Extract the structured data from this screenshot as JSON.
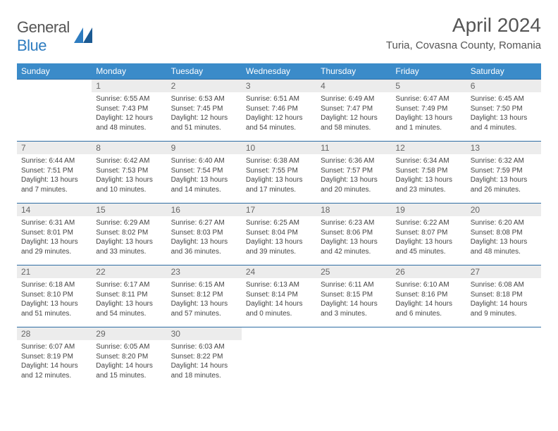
{
  "brand": {
    "name_a": "General",
    "name_b": "Blue"
  },
  "title": "April 2024",
  "location": "Turia, Covasna County, Romania",
  "colors": {
    "header_bg": "#3b8bc9",
    "header_text": "#ffffff",
    "row_border": "#2e6da4",
    "daynum_bg": "#ececec",
    "logo_blue": "#2e7cc0"
  },
  "day_headers": [
    "Sunday",
    "Monday",
    "Tuesday",
    "Wednesday",
    "Thursday",
    "Friday",
    "Saturday"
  ],
  "weeks": [
    [
      null,
      {
        "n": "1",
        "sunrise": "6:55 AM",
        "sunset": "7:43 PM",
        "day_h": "12",
        "day_m": "48"
      },
      {
        "n": "2",
        "sunrise": "6:53 AM",
        "sunset": "7:45 PM",
        "day_h": "12",
        "day_m": "51"
      },
      {
        "n": "3",
        "sunrise": "6:51 AM",
        "sunset": "7:46 PM",
        "day_h": "12",
        "day_m": "54"
      },
      {
        "n": "4",
        "sunrise": "6:49 AM",
        "sunset": "7:47 PM",
        "day_h": "12",
        "day_m": "58"
      },
      {
        "n": "5",
        "sunrise": "6:47 AM",
        "sunset": "7:49 PM",
        "day_h": "13",
        "day_m": "1"
      },
      {
        "n": "6",
        "sunrise": "6:45 AM",
        "sunset": "7:50 PM",
        "day_h": "13",
        "day_m": "4"
      }
    ],
    [
      {
        "n": "7",
        "sunrise": "6:44 AM",
        "sunset": "7:51 PM",
        "day_h": "13",
        "day_m": "7"
      },
      {
        "n": "8",
        "sunrise": "6:42 AM",
        "sunset": "7:53 PM",
        "day_h": "13",
        "day_m": "10"
      },
      {
        "n": "9",
        "sunrise": "6:40 AM",
        "sunset": "7:54 PM",
        "day_h": "13",
        "day_m": "14"
      },
      {
        "n": "10",
        "sunrise": "6:38 AM",
        "sunset": "7:55 PM",
        "day_h": "13",
        "day_m": "17"
      },
      {
        "n": "11",
        "sunrise": "6:36 AM",
        "sunset": "7:57 PM",
        "day_h": "13",
        "day_m": "20"
      },
      {
        "n": "12",
        "sunrise": "6:34 AM",
        "sunset": "7:58 PM",
        "day_h": "13",
        "day_m": "23"
      },
      {
        "n": "13",
        "sunrise": "6:32 AM",
        "sunset": "7:59 PM",
        "day_h": "13",
        "day_m": "26"
      }
    ],
    [
      {
        "n": "14",
        "sunrise": "6:31 AM",
        "sunset": "8:01 PM",
        "day_h": "13",
        "day_m": "29"
      },
      {
        "n": "15",
        "sunrise": "6:29 AM",
        "sunset": "8:02 PM",
        "day_h": "13",
        "day_m": "33"
      },
      {
        "n": "16",
        "sunrise": "6:27 AM",
        "sunset": "8:03 PM",
        "day_h": "13",
        "day_m": "36"
      },
      {
        "n": "17",
        "sunrise": "6:25 AM",
        "sunset": "8:04 PM",
        "day_h": "13",
        "day_m": "39"
      },
      {
        "n": "18",
        "sunrise": "6:23 AM",
        "sunset": "8:06 PM",
        "day_h": "13",
        "day_m": "42"
      },
      {
        "n": "19",
        "sunrise": "6:22 AM",
        "sunset": "8:07 PM",
        "day_h": "13",
        "day_m": "45"
      },
      {
        "n": "20",
        "sunrise": "6:20 AM",
        "sunset": "8:08 PM",
        "day_h": "13",
        "day_m": "48"
      }
    ],
    [
      {
        "n": "21",
        "sunrise": "6:18 AM",
        "sunset": "8:10 PM",
        "day_h": "13",
        "day_m": "51"
      },
      {
        "n": "22",
        "sunrise": "6:17 AM",
        "sunset": "8:11 PM",
        "day_h": "13",
        "day_m": "54"
      },
      {
        "n": "23",
        "sunrise": "6:15 AM",
        "sunset": "8:12 PM",
        "day_h": "13",
        "day_m": "57"
      },
      {
        "n": "24",
        "sunrise": "6:13 AM",
        "sunset": "8:14 PM",
        "day_h": "14",
        "day_m": "0"
      },
      {
        "n": "25",
        "sunrise": "6:11 AM",
        "sunset": "8:15 PM",
        "day_h": "14",
        "day_m": "3"
      },
      {
        "n": "26",
        "sunrise": "6:10 AM",
        "sunset": "8:16 PM",
        "day_h": "14",
        "day_m": "6"
      },
      {
        "n": "27",
        "sunrise": "6:08 AM",
        "sunset": "8:18 PM",
        "day_h": "14",
        "day_m": "9"
      }
    ],
    [
      {
        "n": "28",
        "sunrise": "6:07 AM",
        "sunset": "8:19 PM",
        "day_h": "14",
        "day_m": "12"
      },
      {
        "n": "29",
        "sunrise": "6:05 AM",
        "sunset": "8:20 PM",
        "day_h": "14",
        "day_m": "15"
      },
      {
        "n": "30",
        "sunrise": "6:03 AM",
        "sunset": "8:22 PM",
        "day_h": "14",
        "day_m": "18"
      },
      null,
      null,
      null,
      null
    ]
  ],
  "labels": {
    "sunrise": "Sunrise:",
    "sunset": "Sunset:",
    "daylight": "Daylight:",
    "hours": "hours",
    "and": "and",
    "minutes": "minutes."
  }
}
